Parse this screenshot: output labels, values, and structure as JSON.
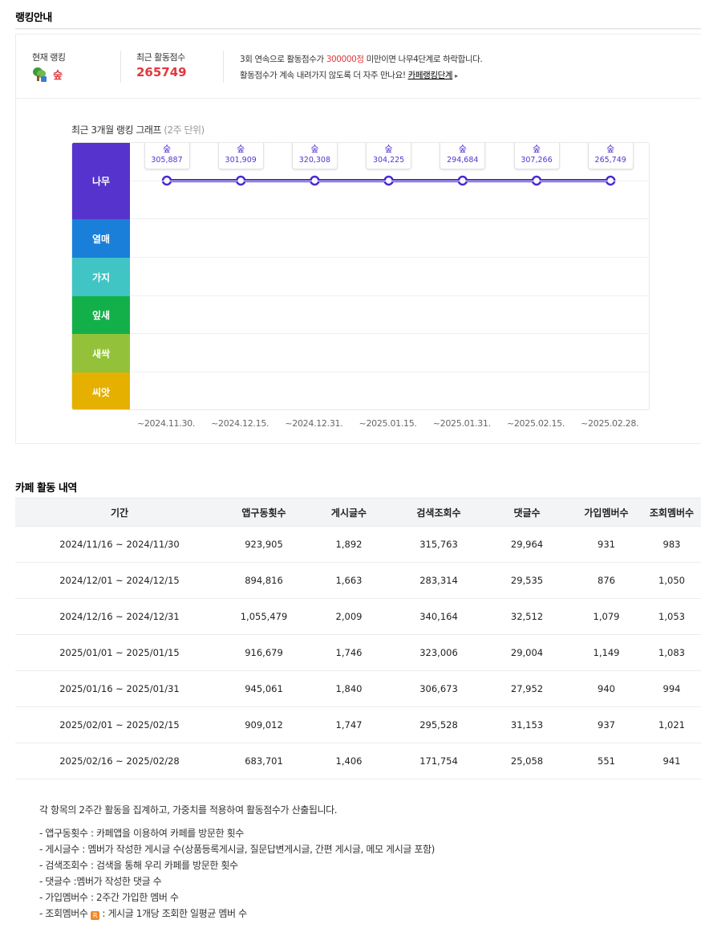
{
  "ranking": {
    "title": "랭킹안내",
    "current_label": "현재 랭킹",
    "current_rank": "숲",
    "score_label": "최근 활동점수",
    "score": "265749",
    "notice1_pre": "3회 연속으로 활동점수가 ",
    "notice1_red": "300000점",
    "notice1_post": " 미만이면 나무4단계로 하락합니다.",
    "notice2": "활동점수가 계속 내려가지 않도록 더 자주 만나요! ",
    "notice2_link": "카페랭킹단계",
    "arrow": "▸"
  },
  "graph": {
    "title": "최근 3개월 랭킹 그래프",
    "subtitle": "(2주 단위)",
    "levels": [
      {
        "name": "나무",
        "color": "#5533cc"
      },
      {
        "name": "열매",
        "color": "#1a7fd8"
      },
      {
        "name": "가지",
        "color": "#40c4c4"
      },
      {
        "name": "잎새",
        "color": "#13b04a"
      },
      {
        "name": "새싹",
        "color": "#93c23a"
      },
      {
        "name": "씨앗",
        "color": "#e6b000"
      }
    ],
    "line_color": "#4a2ad0"
  },
  "chart_data": {
    "type": "line",
    "x": [
      "~2024.11.30.",
      "~2024.12.15.",
      "~2024.12.31.",
      "~2025.01.15.",
      "~2025.01.31.",
      "~2025.02.15.",
      "~2025.02.28."
    ],
    "levels": [
      "숲",
      "숲",
      "숲",
      "숲",
      "숲",
      "숲",
      "숲"
    ],
    "values": [
      "305,887",
      "301,909",
      "320,308",
      "304,225",
      "294,684",
      "307,266",
      "265,749"
    ]
  },
  "activity": {
    "title": "카페 활동 내역",
    "headers": [
      "기간",
      "앱구동횟수",
      "게시글수",
      "검색조회수",
      "댓글수",
      "가입멤버수",
      "조회멤버수"
    ],
    "rows": [
      [
        "2024/11/16 ~ 2024/11/30",
        "923,905",
        "1,892",
        "315,763",
        "29,964",
        "931",
        "983"
      ],
      [
        "2024/12/01 ~ 2024/12/15",
        "894,816",
        "1,663",
        "283,314",
        "29,535",
        "876",
        "1,050"
      ],
      [
        "2024/12/16 ~ 2024/12/31",
        "1,055,479",
        "2,009",
        "340,164",
        "32,512",
        "1,079",
        "1,053"
      ],
      [
        "2025/01/01 ~ 2025/01/15",
        "916,679",
        "1,746",
        "323,006",
        "29,004",
        "1,149",
        "1,083"
      ],
      [
        "2025/01/16 ~ 2025/01/31",
        "945,061",
        "1,840",
        "306,673",
        "27,952",
        "940",
        "994"
      ],
      [
        "2025/02/01 ~ 2025/02/15",
        "909,012",
        "1,747",
        "295,528",
        "31,153",
        "937",
        "1,021"
      ],
      [
        "2025/02/16 ~ 2025/02/28",
        "683,701",
        "1,406",
        "171,754",
        "25,058",
        "551",
        "941"
      ]
    ]
  },
  "footnotes": {
    "head": "각 항목의 2주간 활동을 집계하고, 가중치를 적용하여 활동점수가 산출됩니다.",
    "items": [
      "- 앱구동횟수 : 카페앱을 이용하여 카페를 방문한 횟수",
      "- 게시글수 : 멤버가 작성한 게시글 수(상품등록게시글, 질문답변게시글, 간편 게시글, 메모 게시글 포함)",
      "- 검색조회수 : 검색을 통해 우리 카페를 방문한 횟수",
      "- 댓글수 :멤버가 작성한 댓글 수",
      "- 가입멤버수 : 2주간 가입한 멤버 수"
    ],
    "last_pre": "- 조회멤버수 ",
    "last_icon": "R",
    "last_post": " : 게시글 1개당 조회한 일평균 멤버 수"
  }
}
